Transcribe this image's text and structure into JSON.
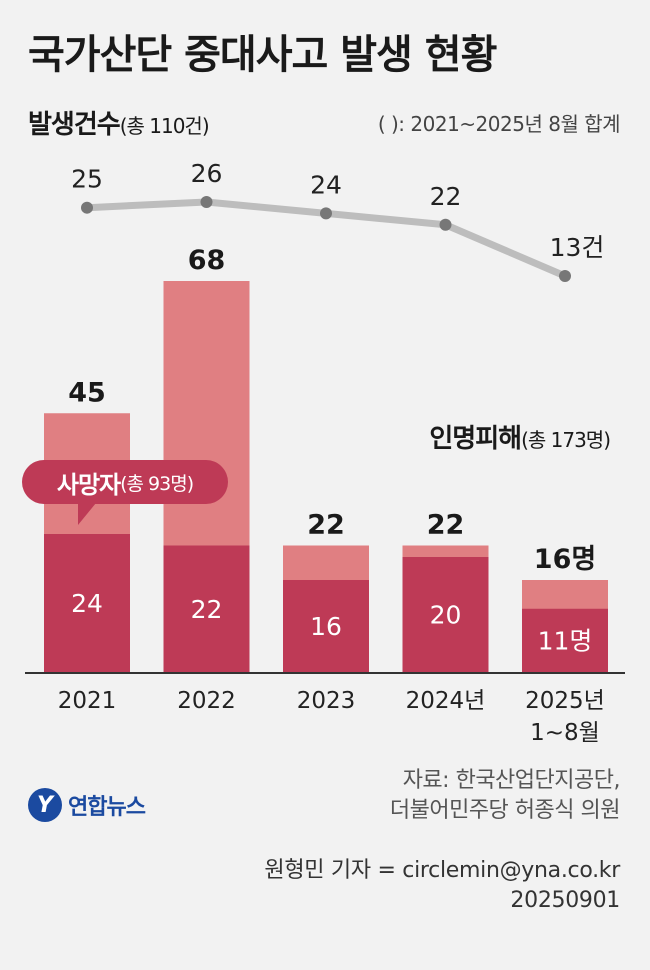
{
  "title": "국가산단 중대사고 발생 현황",
  "incidents_label": "발생건수",
  "incidents_total": "(총 110건)",
  "note": "( ): 2021~2025년 8월 합계",
  "casualties_label": "인명피해",
  "casualties_total": "(총 173명)",
  "deaths_label": "사망자",
  "deaths_total": "(총 93명)",
  "source_line1": "자료: 한국산업단지공단,",
  "source_line2": "더불어민주당 허종식 의원",
  "logo": {
    "icon": "yonhap-logo-icon",
    "text": "연합뉴스"
  },
  "credit_line1": "원형민 기자 = circlemin@yna.co.kr",
  "credit_line2": "20250901",
  "colors": {
    "total": "#e07f82",
    "deaths": "#be3a56",
    "line": "#bdbdbd",
    "point": "#777777"
  },
  "chart_data": {
    "type": "bar",
    "categories": [
      "2021",
      "2022",
      "2023",
      "2024년",
      "2025년\n1~8월"
    ],
    "series": [
      {
        "name": "인명피해",
        "values": [
          45,
          68,
          22,
          22,
          16
        ],
        "labels": [
          "45",
          "68",
          "22",
          "22",
          "16명"
        ]
      },
      {
        "name": "사망자",
        "values": [
          24,
          22,
          16,
          20,
          11
        ],
        "labels": [
          "24",
          "22",
          "16",
          "20",
          "11명"
        ]
      }
    ],
    "line": {
      "name": "발생건수",
      "values": [
        25,
        26,
        24,
        22,
        13
      ],
      "labels": [
        "25",
        "26",
        "24",
        "22",
        "13건"
      ]
    },
    "ylim": [
      0,
      68
    ]
  }
}
